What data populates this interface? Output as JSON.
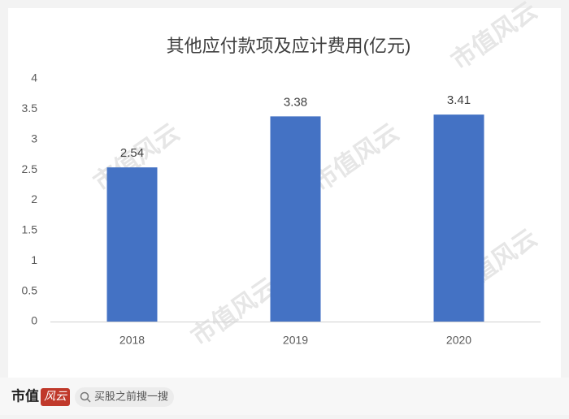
{
  "chart_data": {
    "type": "bar",
    "title": "其他应付款项及应计费用(亿元)",
    "categories": [
      "2018",
      "2019",
      "2020"
    ],
    "values": [
      2.54,
      3.38,
      3.41
    ],
    "color": "#4472c4",
    "ylim": [
      0,
      4
    ],
    "yticks": [
      0,
      0.5,
      1,
      1.5,
      2,
      2.5,
      3,
      3.5,
      4
    ],
    "grid": false
  },
  "watermark": "市值风云",
  "footer": {
    "brand": "市值",
    "logo": "风云",
    "search": "买股之前搜一搜"
  }
}
